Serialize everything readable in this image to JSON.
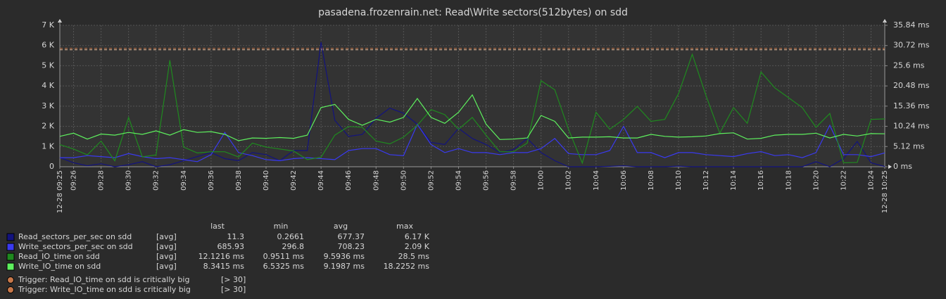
{
  "chart_data": {
    "type": "line",
    "title": "pasadena.frozenrain.net: Read\\Write sectors(512bytes) on sdd",
    "grid": true,
    "categories": [
      "12-28 09:25",
      "09:26",
      null,
      "09:28",
      null,
      "09:30",
      null,
      "09:32",
      null,
      "09:34",
      null,
      "09:36",
      null,
      "09:38",
      null,
      "09:40",
      null,
      "09:42",
      null,
      "09:44",
      null,
      "09:46",
      null,
      "09:48",
      null,
      "09:50",
      null,
      "09:52",
      null,
      "09:54",
      null,
      "09:56",
      null,
      "09:58",
      null,
      "10:00",
      null,
      "10:02",
      null,
      "10:04",
      null,
      "10:06",
      null,
      "10:08",
      null,
      "10:10",
      null,
      "10:12",
      null,
      "10:14",
      null,
      "10:16",
      null,
      "10:18",
      null,
      "10:20",
      null,
      "10:22",
      null,
      "10:24",
      "12-28 10:25"
    ],
    "ylim": [
      0,
      7000
    ],
    "yticks": [
      0,
      {
        "value": 1000,
        "label": "1 K"
      },
      {
        "value": 2000,
        "label": "2 K"
      },
      {
        "value": 3000,
        "label": "3 K"
      },
      {
        "value": 4000,
        "label": "4 K"
      },
      {
        "value": 5000,
        "label": "5 K"
      },
      {
        "value": 6000,
        "label": "6 K"
      },
      {
        "value": 7000,
        "label": "7 K"
      }
    ],
    "y2lim": [
      0,
      35.84
    ],
    "y2ticks": [
      {
        "value": 0,
        "label": "0 ms"
      },
      {
        "value": 5.12,
        "label": "5.12 ms"
      },
      {
        "value": 10.24,
        "label": "10.24 ms"
      },
      {
        "value": 15.36,
        "label": "15.36 ms"
      },
      {
        "value": 20.48,
        "label": "20.48 ms"
      },
      {
        "value": 25.6,
        "label": "25.6 ms"
      },
      {
        "value": 30.72,
        "label": "30.72 ms"
      },
      {
        "value": 35.84,
        "label": "35.84 ms"
      }
    ],
    "series": [
      {
        "name": "Read_sectors_per_sec on sdd",
        "color": "#13137e",
        "axis": "y",
        "values": [
          450,
          200,
          50,
          150,
          0,
          100,
          250,
          0,
          100,
          300,
          500,
          700,
          400,
          300,
          700,
          600,
          300,
          800,
          800,
          6170,
          2300,
          1500,
          1600,
          2400,
          2900,
          2650,
          2100,
          1200,
          1100,
          1900,
          1400,
          1100,
          700,
          850,
          1400,
          700,
          300,
          0,
          0,
          0,
          20,
          50,
          0,
          0,
          0,
          30,
          0,
          0,
          0,
          0,
          0,
          0,
          0,
          0,
          0,
          250,
          0,
          400,
          1250,
          200,
          11.3
        ]
      },
      {
        "name": "Write_sectors_per_sec on sdd",
        "color": "#3a3af0",
        "axis": "y",
        "values": [
          450,
          450,
          550,
          500,
          450,
          650,
          500,
          400,
          450,
          350,
          250,
          600,
          1700,
          700,
          550,
          350,
          300,
          400,
          450,
          400,
          350,
          800,
          900,
          900,
          600,
          550,
          2100,
          1100,
          700,
          900,
          700,
          700,
          600,
          700,
          700,
          900,
          1400,
          650,
          600,
          600,
          800,
          2000,
          700,
          700,
          450,
          700,
          700,
          600,
          550,
          500,
          650,
          750,
          550,
          600,
          450,
          700,
          2050,
          600,
          600,
          500,
          685.93
        ]
      },
      {
        "name": "Read_IO_time on sdd",
        "color": "#1f8a1f",
        "axis": "y2",
        "values": [
          5.6,
          4.5,
          3.0,
          6.5,
          1.5,
          12.5,
          2.5,
          3.0,
          27,
          5,
          3.5,
          3.8,
          3.8,
          2.5,
          6,
          5,
          4.5,
          4,
          1.8,
          2.4,
          8,
          10.2,
          10,
          6.5,
          5.8,
          7.5,
          10.5,
          14.5,
          13.2,
          9.5,
          12.5,
          8,
          3.8,
          3.8,
          6,
          21.8,
          19.5,
          9.5,
          0.95,
          13.8,
          9.5,
          12,
          15.3,
          11.5,
          12,
          18.5,
          28.5,
          18,
          8.5,
          15,
          11,
          24,
          20,
          17.5,
          15,
          10,
          13.5,
          1,
          1.1,
          12,
          12.12
        ]
      },
      {
        "name": "Write_IO_time on sdd",
        "color": "#5ef05e",
        "axis": "y2",
        "values": [
          7.7,
          8.5,
          7,
          8.3,
          8,
          8.7,
          8.2,
          9.1,
          8,
          9.4,
          8.7,
          8.9,
          8.2,
          6.6,
          7.3,
          7.2,
          7.4,
          7.2,
          8.0,
          15,
          15.8,
          12,
          10.5,
          12,
          11.3,
          12.5,
          17.3,
          12.5,
          11,
          13.8,
          18.2,
          10.8,
          6.9,
          7,
          7.3,
          13,
          11.5,
          7.3,
          7.5,
          7.5,
          7.6,
          7.3,
          7.3,
          8.2,
          7.7,
          7.5,
          7.6,
          7.8,
          8.4,
          8.6,
          7,
          7.2,
          8,
          8.2,
          8.2,
          8.5,
          7.3,
          8.2,
          7.8,
          8.4,
          8.34
        ]
      }
    ],
    "legend_table": {
      "columns": [
        "last",
        "min",
        "avg",
        "max"
      ],
      "rows": [
        {
          "function": "[avg]",
          "cells": [
            "11.3",
            "0.2661",
            "677.37",
            "6.17 K"
          ]
        },
        {
          "function": "[avg]",
          "cells": [
            "685.93",
            "296.8",
            "708.23",
            "2.09 K"
          ]
        },
        {
          "function": "[avg]",
          "cells": [
            "12.1216 ms",
            "0.9511 ms",
            "9.5936 ms",
            "28.5 ms"
          ]
        },
        {
          "function": "[avg]",
          "cells": [
            "8.3415 ms",
            "6.5325 ms",
            "9.1987 ms",
            "18.2252 ms"
          ]
        }
      ]
    },
    "triggers": [
      {
        "name": "Trigger: Read_IO_time on sdd is critically big",
        "condition": "[> 30]",
        "value": 30,
        "color": "#c8784a"
      },
      {
        "name": "Trigger: Write_IO_time on sdd is critically big",
        "condition": "[> 30]",
        "value": 30,
        "color": "#e8c0a0"
      }
    ]
  }
}
